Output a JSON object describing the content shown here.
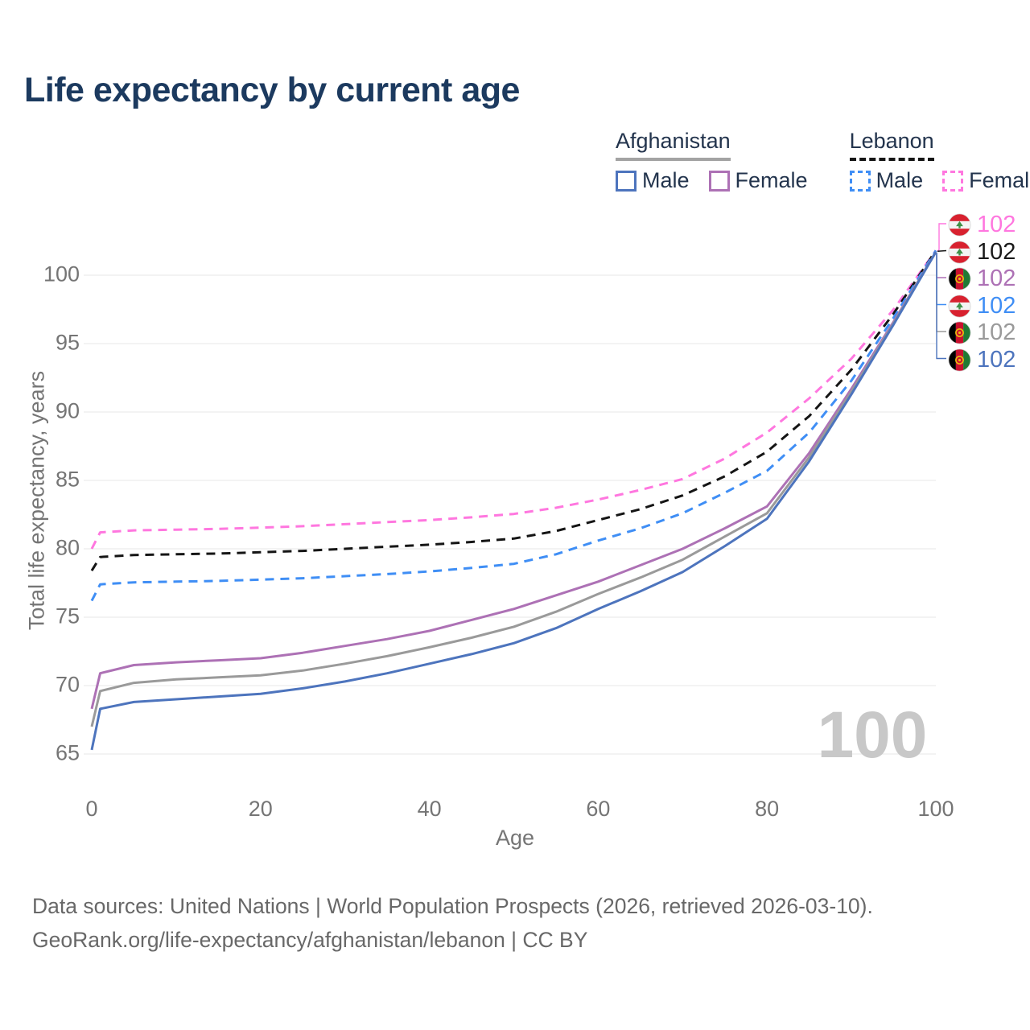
{
  "title": "Life expectancy by current age",
  "legend": {
    "groups": [
      {
        "id": "afghanistan",
        "label": "Afghanistan",
        "line_style": "solid",
        "underline_color": "#a3a3a3",
        "items": [
          {
            "label": "Male",
            "color": "#4d74bd",
            "dashed": false
          },
          {
            "label": "Female",
            "color": "#ad71b5",
            "dashed": false
          }
        ]
      },
      {
        "id": "lebanon",
        "label": "Lebanon",
        "line_style": "dashed",
        "underline_color": "#151515",
        "items": [
          {
            "label": "Male",
            "color": "#3f8ef5",
            "dashed": true
          },
          {
            "label": "Female",
            "color": "#ff77df",
            "dashed": true
          }
        ]
      }
    ]
  },
  "watermark": "100",
  "footer": {
    "line1": "Data sources: United Nations | World Population Prospects (2026, retrieved 2026-03-10).",
    "line2": "GeoRank.org/life-expectancy/afghanistan/lebanon | CC BY"
  },
  "chart_data": {
    "type": "line",
    "title": "Life expectancy by current age",
    "xlabel": "Age",
    "ylabel": "Total life expectancy, years",
    "x_ticks": [
      0,
      20,
      40,
      60,
      80,
      100
    ],
    "y_ticks": [
      65,
      70,
      75,
      80,
      85,
      90,
      95,
      100
    ],
    "xlim": [
      0,
      100
    ],
    "ylim": [
      63.5,
      103
    ],
    "grid": "horizontal",
    "legend_position": "top-right",
    "ages": [
      0,
      1,
      5,
      10,
      15,
      20,
      25,
      30,
      35,
      40,
      45,
      50,
      55,
      60,
      65,
      70,
      75,
      80,
      85,
      90,
      95,
      100
    ],
    "series": [
      {
        "name": "Lebanon Female",
        "country": "Lebanon",
        "sex": "Female",
        "color": "#ff77df",
        "label_color": "#ff77df",
        "dashed": true,
        "flag": "lebanon",
        "end_label": "102",
        "values": [
          80.0,
          81.2,
          81.35,
          81.4,
          81.45,
          81.55,
          81.65,
          81.8,
          81.95,
          82.1,
          82.3,
          82.55,
          83.0,
          83.6,
          84.3,
          85.1,
          86.6,
          88.5,
          91.0,
          93.9,
          97.5,
          101.8
        ]
      },
      {
        "name": "Lebanon Both sexes",
        "country": "Lebanon",
        "sex": "Both",
        "color": "#151515",
        "label_color": "#1a1a1a",
        "dashed": true,
        "flag": "lebanon",
        "end_label": "102",
        "values": [
          78.4,
          79.4,
          79.55,
          79.6,
          79.65,
          79.75,
          79.85,
          80.0,
          80.15,
          80.3,
          80.5,
          80.75,
          81.3,
          82.1,
          82.9,
          83.9,
          85.3,
          87.1,
          89.7,
          93.1,
          97.2,
          101.8
        ]
      },
      {
        "name": "Lebanon Male",
        "country": "Lebanon",
        "sex": "Male",
        "color": "#3f8ef5",
        "label_color": "#3f8ef5",
        "dashed": true,
        "flag": "lebanon",
        "end_label": "102",
        "values": [
          76.2,
          77.4,
          77.55,
          77.6,
          77.65,
          77.75,
          77.85,
          78.0,
          78.15,
          78.35,
          78.6,
          78.9,
          79.6,
          80.6,
          81.5,
          82.6,
          84.1,
          85.7,
          88.5,
          92.3,
          96.9,
          101.8
        ]
      },
      {
        "name": "Afghanistan Female",
        "country": "Afghanistan",
        "sex": "Female",
        "color": "#ad71b5",
        "label_color": "#ad71b5",
        "dashed": false,
        "flag": "afghanistan",
        "end_label": "102",
        "values": [
          68.3,
          70.9,
          71.5,
          71.7,
          71.85,
          72.0,
          72.4,
          72.9,
          73.4,
          74.0,
          74.8,
          75.6,
          76.6,
          77.6,
          78.8,
          80.0,
          81.5,
          83.1,
          87.0,
          91.7,
          96.6,
          101.7
        ]
      },
      {
        "name": "Afghanistan Both sexes",
        "country": "Afghanistan",
        "sex": "Both",
        "color": "#9a9a9a",
        "label_color": "#9a9a9a",
        "dashed": false,
        "flag": "afghanistan",
        "end_label": "102",
        "values": [
          67.0,
          69.6,
          70.2,
          70.45,
          70.6,
          70.75,
          71.1,
          71.6,
          72.15,
          72.8,
          73.5,
          74.3,
          75.4,
          76.7,
          77.9,
          79.2,
          80.9,
          82.6,
          86.7,
          91.5,
          96.5,
          101.7
        ]
      },
      {
        "name": "Afghanistan Male",
        "country": "Afghanistan",
        "sex": "Male",
        "color": "#4d74bd",
        "label_color": "#4d74bd",
        "dashed": false,
        "flag": "afghanistan",
        "end_label": "102",
        "values": [
          65.3,
          68.3,
          68.8,
          69.0,
          69.2,
          69.4,
          69.8,
          70.3,
          70.9,
          71.6,
          72.3,
          73.1,
          74.2,
          75.6,
          76.9,
          78.3,
          80.2,
          82.2,
          86.4,
          91.3,
          96.4,
          101.7
        ]
      }
    ],
    "end_labels_order_top_to_bottom": [
      "Lebanon Female",
      "Lebanon Both sexes",
      "Afghanistan Female",
      "Lebanon Male",
      "Afghanistan Both sexes",
      "Afghanistan Male"
    ]
  }
}
